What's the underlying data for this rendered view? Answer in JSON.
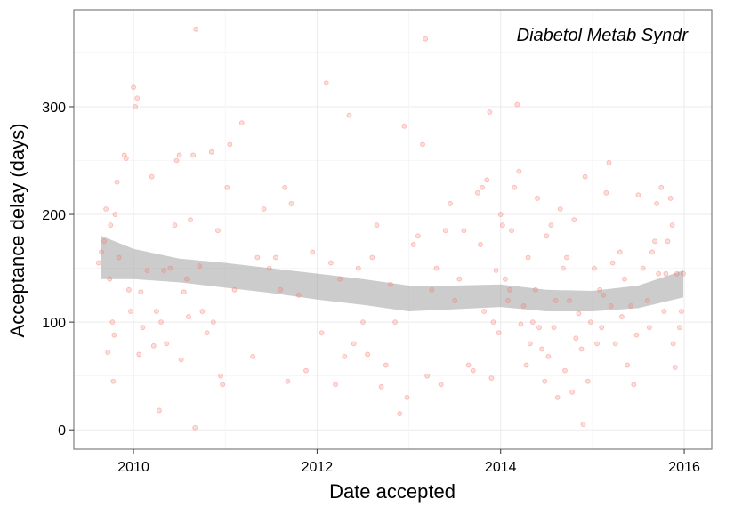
{
  "chart_data": {
    "type": "scatter",
    "title": "",
    "annotation": "Diabetol Metab Syndr",
    "xlabel": "Date accepted",
    "ylabel": "Acceptance delay (days)",
    "xlim": [
      2009.35,
      2016.3
    ],
    "ylim": [
      -18,
      390
    ],
    "x_ticks": [
      2010,
      2012,
      2014,
      2016
    ],
    "y_ticks": [
      0,
      100,
      200,
      300
    ],
    "grid": true,
    "point_color": "#f8766d",
    "band_color": "#999999",
    "series": [
      {
        "points": [
          [
            2009.62,
            155
          ],
          [
            2009.65,
            165
          ],
          [
            2009.68,
            175
          ],
          [
            2009.7,
            205
          ],
          [
            2009.72,
            72
          ],
          [
            2009.74,
            140
          ],
          [
            2009.75,
            190
          ],
          [
            2009.77,
            100
          ],
          [
            2009.78,
            45
          ],
          [
            2009.79,
            88
          ],
          [
            2009.8,
            200
          ],
          [
            2009.82,
            230
          ],
          [
            2009.84,
            160
          ],
          [
            2009.9,
            255
          ],
          [
            2009.92,
            252
          ],
          [
            2009.95,
            130
          ],
          [
            2009.97,
            110
          ],
          [
            2010.0,
            318
          ],
          [
            2010.02,
            300
          ],
          [
            2010.04,
            308
          ],
          [
            2010.06,
            70
          ],
          [
            2010.08,
            128
          ],
          [
            2010.1,
            95
          ],
          [
            2010.15,
            148
          ],
          [
            2010.2,
            235
          ],
          [
            2010.22,
            78
          ],
          [
            2010.25,
            110
          ],
          [
            2010.28,
            18
          ],
          [
            2010.3,
            100
          ],
          [
            2010.33,
            148
          ],
          [
            2010.36,
            80
          ],
          [
            2010.4,
            150
          ],
          [
            2010.45,
            190
          ],
          [
            2010.47,
            250
          ],
          [
            2010.5,
            255
          ],
          [
            2010.52,
            65
          ],
          [
            2010.55,
            128
          ],
          [
            2010.58,
            140
          ],
          [
            2010.6,
            105
          ],
          [
            2010.62,
            195
          ],
          [
            2010.65,
            255
          ],
          [
            2010.67,
            2
          ],
          [
            2010.68,
            372
          ],
          [
            2010.72,
            152
          ],
          [
            2010.75,
            110
          ],
          [
            2010.8,
            90
          ],
          [
            2010.85,
            258
          ],
          [
            2010.87,
            100
          ],
          [
            2010.92,
            185
          ],
          [
            2010.95,
            50
          ],
          [
            2010.97,
            42
          ],
          [
            2011.02,
            225
          ],
          [
            2011.05,
            265
          ],
          [
            2011.1,
            130
          ],
          [
            2011.18,
            285
          ],
          [
            2011.3,
            68
          ],
          [
            2011.35,
            160
          ],
          [
            2011.42,
            205
          ],
          [
            2011.48,
            150
          ],
          [
            2011.55,
            160
          ],
          [
            2011.6,
            130
          ],
          [
            2011.65,
            225
          ],
          [
            2011.68,
            45
          ],
          [
            2011.72,
            210
          ],
          [
            2011.8,
            125
          ],
          [
            2011.88,
            55
          ],
          [
            2011.95,
            165
          ],
          [
            2012.05,
            90
          ],
          [
            2012.1,
            322
          ],
          [
            2012.15,
            155
          ],
          [
            2012.2,
            42
          ],
          [
            2012.25,
            140
          ],
          [
            2012.3,
            68
          ],
          [
            2012.35,
            292
          ],
          [
            2012.4,
            80
          ],
          [
            2012.45,
            150
          ],
          [
            2012.5,
            100
          ],
          [
            2012.55,
            70
          ],
          [
            2012.6,
            160
          ],
          [
            2012.65,
            190
          ],
          [
            2012.7,
            40
          ],
          [
            2012.75,
            60
          ],
          [
            2012.8,
            135
          ],
          [
            2012.85,
            100
          ],
          [
            2012.9,
            15
          ],
          [
            2012.95,
            282
          ],
          [
            2012.98,
            30
          ],
          [
            2013.05,
            172
          ],
          [
            2013.1,
            180
          ],
          [
            2013.15,
            265
          ],
          [
            2013.18,
            363
          ],
          [
            2013.2,
            50
          ],
          [
            2013.25,
            130
          ],
          [
            2013.3,
            150
          ],
          [
            2013.35,
            42
          ],
          [
            2013.4,
            185
          ],
          [
            2013.45,
            210
          ],
          [
            2013.5,
            120
          ],
          [
            2013.55,
            140
          ],
          [
            2013.6,
            185
          ],
          [
            2013.65,
            60
          ],
          [
            2013.7,
            55
          ],
          [
            2013.75,
            220
          ],
          [
            2013.78,
            172
          ],
          [
            2013.8,
            225
          ],
          [
            2013.82,
            110
          ],
          [
            2013.85,
            232
          ],
          [
            2013.88,
            295
          ],
          [
            2013.9,
            48
          ],
          [
            2013.92,
            100
          ],
          [
            2013.95,
            148
          ],
          [
            2013.98,
            90
          ],
          [
            2014.0,
            200
          ],
          [
            2014.02,
            190
          ],
          [
            2014.05,
            140
          ],
          [
            2014.08,
            120
          ],
          [
            2014.1,
            130
          ],
          [
            2014.12,
            185
          ],
          [
            2014.15,
            225
          ],
          [
            2014.18,
            302
          ],
          [
            2014.2,
            240
          ],
          [
            2014.22,
            98
          ],
          [
            2014.25,
            115
          ],
          [
            2014.28,
            60
          ],
          [
            2014.3,
            160
          ],
          [
            2014.32,
            80
          ],
          [
            2014.35,
            100
          ],
          [
            2014.38,
            130
          ],
          [
            2014.4,
            215
          ],
          [
            2014.42,
            95
          ],
          [
            2014.45,
            75
          ],
          [
            2014.48,
            45
          ],
          [
            2014.5,
            180
          ],
          [
            2014.52,
            68
          ],
          [
            2014.55,
            190
          ],
          [
            2014.58,
            95
          ],
          [
            2014.6,
            120
          ],
          [
            2014.62,
            30
          ],
          [
            2014.65,
            205
          ],
          [
            2014.68,
            150
          ],
          [
            2014.7,
            55
          ],
          [
            2014.72,
            160
          ],
          [
            2014.75,
            120
          ],
          [
            2014.78,
            35
          ],
          [
            2014.8,
            195
          ],
          [
            2014.82,
            85
          ],
          [
            2014.85,
            108
          ],
          [
            2014.88,
            75
          ],
          [
            2014.9,
            5
          ],
          [
            2014.92,
            235
          ],
          [
            2014.95,
            45
          ],
          [
            2014.98,
            100
          ],
          [
            2015.02,
            150
          ],
          [
            2015.05,
            80
          ],
          [
            2015.08,
            130
          ],
          [
            2015.1,
            95
          ],
          [
            2015.12,
            125
          ],
          [
            2015.15,
            220
          ],
          [
            2015.18,
            248
          ],
          [
            2015.2,
            115
          ],
          [
            2015.22,
            155
          ],
          [
            2015.25,
            80
          ],
          [
            2015.3,
            165
          ],
          [
            2015.32,
            105
          ],
          [
            2015.35,
            140
          ],
          [
            2015.38,
            60
          ],
          [
            2015.42,
            115
          ],
          [
            2015.45,
            42
          ],
          [
            2015.48,
            88
          ],
          [
            2015.5,
            218
          ],
          [
            2015.55,
            150
          ],
          [
            2015.6,
            120
          ],
          [
            2015.62,
            95
          ],
          [
            2015.65,
            165
          ],
          [
            2015.68,
            175
          ],
          [
            2015.7,
            210
          ],
          [
            2015.72,
            145
          ],
          [
            2015.75,
            225
          ],
          [
            2015.78,
            110
          ],
          [
            2015.8,
            145
          ],
          [
            2015.82,
            175
          ],
          [
            2015.85,
            215
          ],
          [
            2015.87,
            190
          ],
          [
            2015.88,
            80
          ],
          [
            2015.9,
            58
          ],
          [
            2015.92,
            145
          ],
          [
            2015.95,
            95
          ],
          [
            2015.97,
            110
          ],
          [
            2015.99,
            145
          ]
        ]
      }
    ],
    "smooth": [
      {
        "x": 2009.65,
        "lower": 140,
        "upper": 180
      },
      {
        "x": 2010.0,
        "lower": 140,
        "upper": 168
      },
      {
        "x": 2010.5,
        "lower": 137,
        "upper": 159
      },
      {
        "x": 2011.0,
        "lower": 132,
        "upper": 155
      },
      {
        "x": 2011.5,
        "lower": 127,
        "upper": 150
      },
      {
        "x": 2012.0,
        "lower": 121,
        "upper": 145
      },
      {
        "x": 2012.5,
        "lower": 116,
        "upper": 140
      },
      {
        "x": 2013.0,
        "lower": 110,
        "upper": 134
      },
      {
        "x": 2013.5,
        "lower": 112,
        "upper": 134
      },
      {
        "x": 2014.0,
        "lower": 114,
        "upper": 135
      },
      {
        "x": 2014.5,
        "lower": 110,
        "upper": 130
      },
      {
        "x": 2015.0,
        "lower": 110,
        "upper": 129
      },
      {
        "x": 2015.5,
        "lower": 113,
        "upper": 134
      },
      {
        "x": 2015.99,
        "lower": 123,
        "upper": 148
      }
    ]
  }
}
